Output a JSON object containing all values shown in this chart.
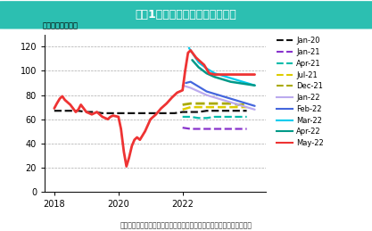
{
  "title": "図表1：ブレント原油価格見通し",
  "title_bg": "#2cbfb1",
  "ylabel": "（ドル／バレル）",
  "source": "（出所：米国エネルギー情報局より住友商事グローバルリサーチ作成）",
  "ylim": [
    0,
    130
  ],
  "yticks": [
    0,
    20,
    40,
    60,
    80,
    100,
    120
  ],
  "xlim_start": 2017.7,
  "xlim_end": 2024.6,
  "xtick_years": [
    2018,
    2020,
    2022
  ],
  "series": {
    "Jan-20": {
      "color": "#111111",
      "linestyle": "dashed",
      "linewidth": 1.6,
      "x": [
        2018.0,
        2018.25,
        2018.5,
        2018.75,
        2019.0,
        2019.25,
        2019.5,
        2019.75,
        2020.0,
        2020.25,
        2020.5,
        2020.75,
        2021.0,
        2021.25,
        2021.5,
        2021.75,
        2022.0,
        2022.25,
        2022.5,
        2022.75,
        2023.0,
        2023.25,
        2023.5,
        2023.75,
        2024.0
      ],
      "y": [
        67,
        67,
        67,
        67,
        66,
        66,
        65,
        65,
        65,
        65,
        65,
        65,
        65,
        65,
        65,
        65,
        66,
        66,
        66,
        67,
        67,
        67,
        67,
        67,
        67
      ]
    },
    "Jan-21": {
      "color": "#8833cc",
      "linestyle": "dashed",
      "linewidth": 1.6,
      "x": [
        2021.5,
        2021.75,
        2022.0,
        2022.25,
        2022.5,
        2022.75,
        2023.0,
        2023.25,
        2023.5,
        2023.75,
        2024.0
      ],
      "y": [
        null,
        null,
        53,
        52,
        52,
        52,
        52,
        52,
        52,
        52,
        52
      ]
    },
    "Apr-21": {
      "color": "#00bbaa",
      "linestyle": "dashed",
      "linewidth": 1.6,
      "x": [
        2021.75,
        2022.0,
        2022.25,
        2022.5,
        2022.75,
        2023.0,
        2023.25,
        2023.5,
        2023.75,
        2024.0
      ],
      "y": [
        null,
        62,
        62,
        61,
        61,
        62,
        62,
        62,
        62,
        62
      ]
    },
    "Jul-21": {
      "color": "#ddcc00",
      "linestyle": "dashed",
      "linewidth": 1.8,
      "x": [
        2022.0,
        2022.25,
        2022.5,
        2022.75,
        2023.0,
        2023.25,
        2023.5,
        2023.75,
        2024.0
      ],
      "y": [
        68,
        70,
        70,
        70,
        70,
        70,
        70,
        70,
        70
      ]
    },
    "Dec-21": {
      "color": "#aaaa00",
      "linestyle": "dashed",
      "linewidth": 2.0,
      "x": [
        2022.0,
        2022.25,
        2022.5,
        2022.75,
        2023.0,
        2023.25,
        2023.5,
        2023.75,
        2024.0
      ],
      "y": [
        72,
        73,
        73,
        73,
        73,
        73,
        73,
        72,
        72
      ]
    },
    "Jan-22": {
      "color": "#bbaaee",
      "linestyle": "solid",
      "linewidth": 1.6,
      "x": [
        2022.0,
        2022.25,
        2022.5,
        2022.75,
        2023.0,
        2023.25,
        2023.5,
        2023.75,
        2024.0,
        2024.25
      ],
      "y": [
        88,
        86,
        83,
        80,
        78,
        76,
        74,
        72,
        70,
        68
      ]
    },
    "Feb-22": {
      "color": "#4466dd",
      "linestyle": "solid",
      "linewidth": 1.6,
      "x": [
        2022.1,
        2022.25,
        2022.5,
        2022.75,
        2023.0,
        2023.25,
        2023.5,
        2023.75,
        2024.0,
        2024.25
      ],
      "y": [
        90,
        91,
        87,
        83,
        81,
        79,
        77,
        75,
        73,
        71
      ]
    },
    "Mar-22": {
      "color": "#00ccee",
      "linestyle": "solid",
      "linewidth": 1.6,
      "x": [
        2022.2,
        2022.35,
        2022.5,
        2022.75,
        2023.0,
        2023.25,
        2023.5,
        2023.75,
        2024.0,
        2024.25
      ],
      "y": [
        119,
        113,
        107,
        102,
        98,
        96,
        94,
        92,
        90,
        88
      ]
    },
    "Apr-22": {
      "color": "#009988",
      "linestyle": "solid",
      "linewidth": 1.8,
      "x": [
        2022.3,
        2022.5,
        2022.75,
        2023.0,
        2023.25,
        2023.5,
        2023.75,
        2024.0,
        2024.25
      ],
      "y": [
        109,
        103,
        98,
        95,
        93,
        91,
        90,
        89,
        88
      ]
    },
    "May-22": {
      "color": "#ee3333",
      "linestyle": "solid",
      "linewidth": 2.0,
      "x": [
        2018.0,
        2018.08,
        2018.17,
        2018.25,
        2018.33,
        2018.5,
        2018.67,
        2018.75,
        2018.83,
        2019.0,
        2019.17,
        2019.25,
        2019.33,
        2019.5,
        2019.67,
        2019.75,
        2019.83,
        2020.0,
        2020.08,
        2020.17,
        2020.25,
        2020.33,
        2020.42,
        2020.5,
        2020.58,
        2020.67,
        2020.83,
        2021.0,
        2021.17,
        2021.33,
        2021.5,
        2021.67,
        2021.83,
        2022.0,
        2022.08,
        2022.17,
        2022.25,
        2022.42,
        2022.5,
        2022.67,
        2022.83,
        2023.0,
        2023.25,
        2023.5,
        2023.75,
        2024.0,
        2024.25
      ],
      "y": [
        69,
        73,
        77,
        79,
        76,
        72,
        66,
        68,
        72,
        66,
        64,
        65,
        66,
        62,
        60,
        62,
        63,
        62,
        52,
        33,
        21,
        28,
        38,
        43,
        45,
        43,
        50,
        60,
        64,
        69,
        73,
        78,
        82,
        84,
        100,
        115,
        117,
        111,
        109,
        105,
        98,
        97,
        97,
        97,
        97,
        97,
        97
      ]
    }
  },
  "legend_order": [
    "Jan-20",
    "Jan-21",
    "Apr-21",
    "Jul-21",
    "Dec-21",
    "Jan-22",
    "Feb-22",
    "Mar-22",
    "Apr-22",
    "May-22"
  ],
  "legend_styles": {
    "Jan-20": {
      "color": "#111111",
      "linestyle": "dashed"
    },
    "Jan-21": {
      "color": "#8833cc",
      "linestyle": "dashed"
    },
    "Apr-21": {
      "color": "#00bbaa",
      "linestyle": "dashed"
    },
    "Jul-21": {
      "color": "#ddcc00",
      "linestyle": "dashed"
    },
    "Dec-21": {
      "color": "#aaaa00",
      "linestyle": "dashed"
    },
    "Jan-22": {
      "color": "#bbaaee",
      "linestyle": "solid"
    },
    "Feb-22": {
      "color": "#4466dd",
      "linestyle": "solid"
    },
    "Mar-22": {
      "color": "#00ccee",
      "linestyle": "solid"
    },
    "Apr-22": {
      "color": "#009988",
      "linestyle": "solid"
    },
    "May-22": {
      "color": "#ee3333",
      "linestyle": "solid"
    }
  }
}
